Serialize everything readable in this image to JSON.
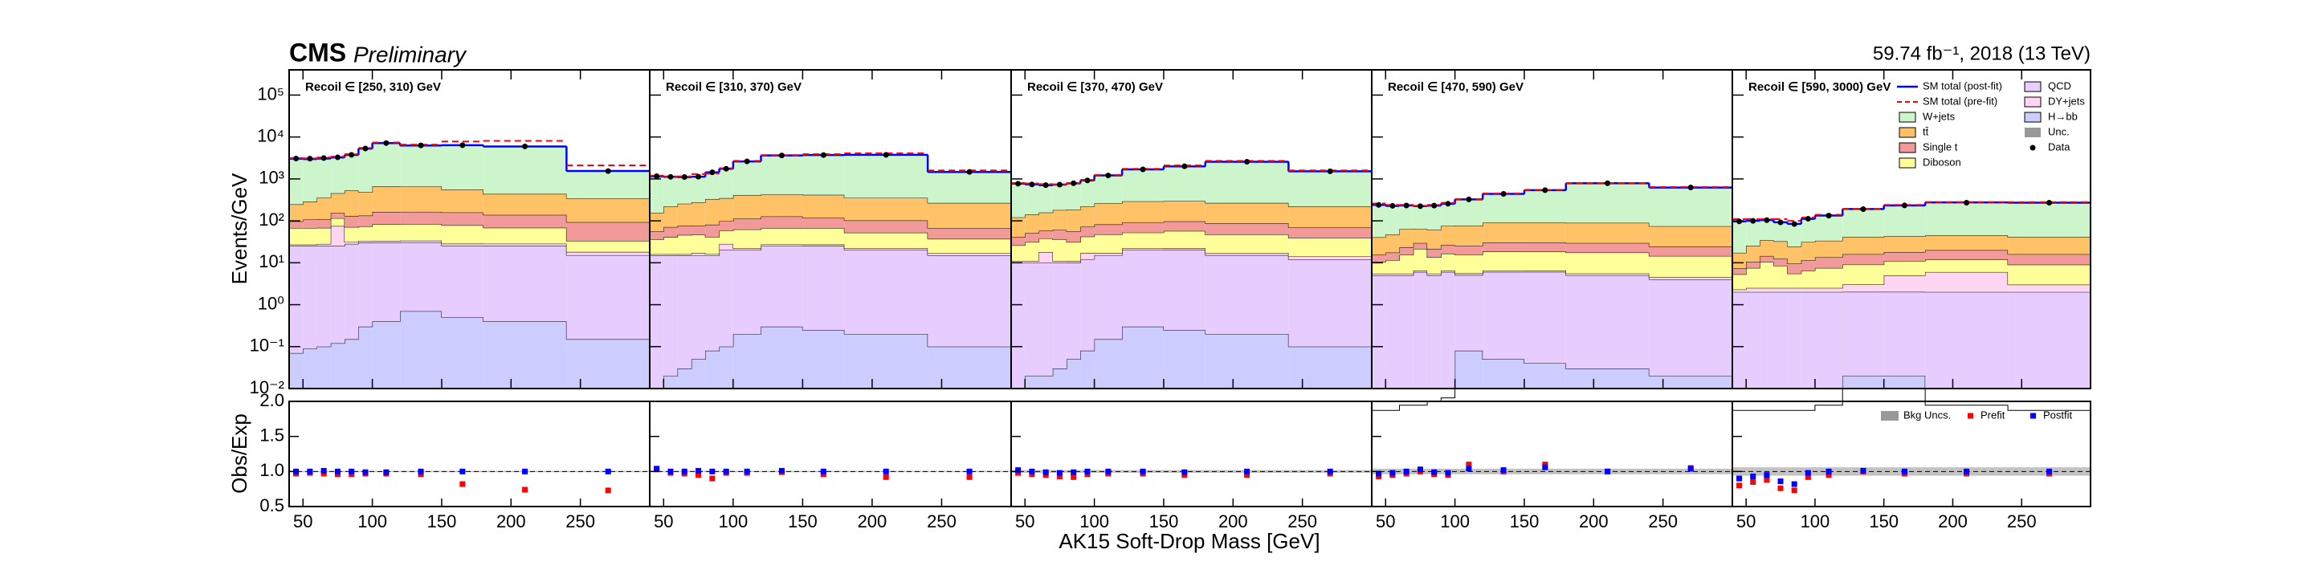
{
  "chart_data": {
    "type": "stacked-step-ratio",
    "title": "CMS",
    "subtitle": "Preliminary",
    "lumi": "59.74 fb⁻¹, 2018 (13 TeV)",
    "ylabel": "Events/GeV",
    "ratio_ylabel": "Obs/Exp",
    "xlabel": "AK15 Soft-Drop Mass [GeV]",
    "log_y": true,
    "bins": [
      40,
      50,
      60,
      70,
      80,
      90,
      100,
      120,
      150,
      180,
      240,
      300
    ],
    "xlim": [
      40,
      300
    ],
    "xticks": [
      50,
      100,
      150,
      200,
      250
    ],
    "ylim": [
      0.01,
      400000
    ],
    "yticks": [
      {
        "value": 0.01,
        "label": "10⁻²"
      },
      {
        "value": 0.1,
        "label": "10⁻¹"
      },
      {
        "value": 1,
        "label": "10⁰"
      },
      {
        "value": 10,
        "label": "10¹"
      },
      {
        "value": 100,
        "label": "10²"
      },
      {
        "value": 1000,
        "label": "10³"
      },
      {
        "value": 10000,
        "label": "10⁴"
      },
      {
        "value": 100000,
        "label": "10⁵"
      }
    ],
    "ratio_ylim": [
      0.5,
      2
    ],
    "ratio_yticks": [
      0.5,
      {
        "value": 1,
        "label": "1.0"
      },
      1.5,
      {
        "value": 2,
        "label": "2.0"
      }
    ],
    "processes": [
      {
        "name": "H→bb",
        "color": "#ccccff"
      },
      {
        "name": "QCD",
        "color": "#e6ccff"
      },
      {
        "name": "DY+jets",
        "color": "#ffd6f2"
      },
      {
        "name": "Diboson",
        "color": "#ffff99"
      },
      {
        "name": "Single t",
        "color": "#f29999"
      },
      {
        "name": "tt̄",
        "color": "#ffc266"
      },
      {
        "name": "W+jets",
        "color": "#ccf5cc"
      }
    ],
    "legend": {
      "postfit": "SM total (post-fit)",
      "prefit": "SM total (pre-fit)",
      "unc": "Unc.",
      "data": "Data",
      "ratio_unc": "Bkg Uncs.",
      "ratio_prefit": "Prefit",
      "ratio_postfit": "Postfit"
    },
    "colors": {
      "postfit": "#0000ff",
      "prefit": "#ff0000",
      "data": "#000000"
    },
    "panels": [
      {
        "label": "Recoil ∈ [250, 310) GeV",
        "stack": [
          [
            0.07,
            0.09,
            0.1,
            0.12,
            0.15,
            0.3,
            0.4,
            0.7,
            0.5,
            0.4,
            0.15
          ],
          [
            25,
            25,
            25,
            25,
            28,
            30,
            30,
            30,
            25,
            25,
            15
          ],
          [
            2,
            2,
            3,
            50,
            3,
            3,
            3,
            3,
            3,
            3,
            3
          ],
          [
            40,
            40,
            40,
            40,
            40,
            40,
            50,
            50,
            50,
            40,
            15
          ],
          [
            30,
            40,
            40,
            40,
            60,
            60,
            80,
            80,
            80,
            70,
            60
          ],
          [
            150,
            180,
            250,
            300,
            400,
            350,
            500,
            500,
            400,
            300,
            250
          ],
          [
            2800,
            2700,
            2700,
            2800,
            3200,
            4800,
            6500,
            5600,
            5800,
            5500,
            1200
          ]
        ],
        "prefit_total": [
          3150,
          3100,
          3250,
          3400,
          3900,
          5500,
          7400,
          6600,
          7800,
          8100,
          2100
        ],
        "data": [
          3060,
          3050,
          3150,
          3280,
          3760,
          5310,
          7170,
          6310,
          6370,
          5960,
          1540
        ],
        "ratio_prefit": [
          0.97,
          0.98,
          0.97,
          0.96,
          0.96,
          0.97,
          0.97,
          0.96,
          0.82,
          0.74,
          0.73
        ],
        "ratio_postfit": [
          1.0,
          1.0,
          1.01,
          1.0,
          1.0,
          0.99,
          0.99,
          1.0,
          1.0,
          1.0,
          1.0
        ],
        "unc": 0.01
      },
      {
        "label": "Recoil ∈ [310, 370) GeV",
        "stack": [
          [
            0.01,
            0.02,
            0.03,
            0.05,
            0.08,
            0.1,
            0.2,
            0.3,
            0.25,
            0.2,
            0.1
          ],
          [
            15,
            15,
            15,
            15,
            15,
            20,
            20,
            25,
            25,
            20,
            15
          ],
          [
            1,
            1,
            1,
            2,
            1,
            8,
            2,
            2,
            2,
            2,
            2
          ],
          [
            20,
            25,
            30,
            30,
            25,
            30,
            40,
            40,
            40,
            30,
            20
          ],
          [
            20,
            30,
            30,
            30,
            40,
            40,
            50,
            60,
            50,
            50,
            30
          ],
          [
            100,
            150,
            180,
            200,
            250,
            250,
            300,
            300,
            300,
            250,
            200
          ],
          [
            1000,
            900,
            850,
            850,
            1100,
            1400,
            2200,
            3200,
            3300,
            3400,
            1200
          ]
        ],
        "prefit_total": [
          1200,
          1150,
          1150,
          1300,
          1350,
          1800,
          2700,
          3700,
          3900,
          4100,
          1600
        ],
        "data": [
          1160,
          1120,
          1110,
          1130,
          1440,
          1750,
          2620,
          3630,
          3720,
          3750,
          1470
        ],
        "ratio_prefit": [
          1.03,
          0.98,
          0.97,
          0.95,
          0.9,
          0.98,
          0.98,
          0.99,
          0.96,
          0.92,
          0.92
        ],
        "ratio_postfit": [
          1.04,
          1.0,
          1.0,
          1.01,
          1.0,
          1.0,
          1.0,
          1.01,
          1.0,
          1.0,
          1.0
        ],
        "unc": 0.01
      },
      {
        "label": "Recoil ∈ [370, 470) GeV",
        "stack": [
          [
            0.01,
            0.02,
            0.02,
            0.03,
            0.05,
            0.08,
            0.15,
            0.3,
            0.25,
            0.2,
            0.1
          ],
          [
            10,
            10,
            10,
            10,
            10,
            12,
            15,
            20,
            20,
            15,
            12
          ],
          [
            1,
            1,
            8,
            1,
            1,
            5,
            2,
            2,
            2,
            2,
            2
          ],
          [
            15,
            20,
            20,
            25,
            20,
            25,
            30,
            30,
            35,
            30,
            25
          ],
          [
            15,
            20,
            20,
            25,
            25,
            30,
            35,
            40,
            40,
            40,
            30
          ],
          [
            80,
            90,
            100,
            120,
            130,
            150,
            180,
            200,
            200,
            180,
            150
          ],
          [
            650,
            600,
            550,
            550,
            600,
            700,
            950,
            1400,
            1700,
            2300,
            1300
          ]
        ],
        "prefit_total": [
          800,
          780,
          750,
          740,
          800,
          950,
          1250,
          1750,
          2100,
          2700,
          1600
        ],
        "data": [
          770,
          740,
          710,
          730,
          790,
          920,
          1210,
          1690,
          2000,
          2570,
          1520
        ],
        "ratio_prefit": [
          0.98,
          0.96,
          0.95,
          0.93,
          0.92,
          0.96,
          0.97,
          0.97,
          0.95,
          0.95,
          0.97
        ],
        "ratio_postfit": [
          1.02,
          1.0,
          0.99,
          0.98,
          0.99,
          1.0,
          1.0,
          1.0,
          0.99,
          1.0,
          1.0
        ],
        "unc": 0.02
      },
      {
        "label": "Recoil ∈ [470, 590) GeV",
        "stack": [
          [
            0.003,
            0.003,
            0.004,
            0.004,
            0.005,
            0.006,
            0.08,
            0.05,
            0.04,
            0.03,
            0.02
          ],
          [
            5,
            5,
            5,
            6,
            5,
            6,
            5,
            6,
            6,
            5,
            4
          ],
          [
            0.5,
            0.5,
            0.5,
            0.5,
            0.5,
            0.5,
            0.5,
            0.5,
            0.5,
            0.5,
            0.5
          ],
          [
            5,
            6,
            10,
            15,
            8,
            10,
            10,
            12,
            12,
            12,
            10
          ],
          [
            5,
            6,
            8,
            8,
            8,
            10,
            10,
            12,
            12,
            12,
            10
          ],
          [
            25,
            30,
            40,
            35,
            40,
            50,
            50,
            60,
            60,
            60,
            50
          ],
          [
            200,
            180,
            170,
            160,
            170,
            180,
            250,
            350,
            450,
            700,
            550
          ]
        ],
        "prefit_total": [
          260,
          240,
          240,
          230,
          240,
          270,
          330,
          450,
          550,
          800,
          640
        ],
        "data": [
          240,
          228,
          232,
          224,
          231,
          256,
          325,
          440,
          540,
          790,
          625
        ],
        "ratio_prefit": [
          0.93,
          0.95,
          0.97,
          1.0,
          0.96,
          0.95,
          1.1,
          1.0,
          1.1,
          1.0,
          1.05
        ],
        "ratio_postfit": [
          0.97,
          0.98,
          1.0,
          1.03,
          0.99,
          0.98,
          1.04,
          1.02,
          1.06,
          1.0,
          1.04
        ],
        "unc": 0.04
      },
      {
        "label": "Recoil ∈ [590, 3000) GeV",
        "stack": [
          [
            0.003,
            0.003,
            0.003,
            0.003,
            0.003,
            0.003,
            0.004,
            0.02,
            0.02,
            0.004,
            0.003
          ],
          [
            2,
            2,
            2,
            2,
            2,
            2,
            2,
            2,
            2,
            2,
            2
          ],
          [
            0.3,
            0.5,
            0.5,
            0.5,
            0.5,
            0.5,
            0.5,
            1,
            3,
            4,
            1
          ],
          [
            3,
            5,
            8,
            6,
            3,
            4,
            5,
            6,
            6,
            6,
            6
          ],
          [
            2,
            3,
            4,
            4,
            4,
            5,
            6,
            7,
            7,
            8,
            7
          ],
          [
            10,
            15,
            20,
            20,
            15,
            20,
            20,
            25,
            25,
            25,
            25
          ],
          [
            80,
            75,
            70,
            60,
            60,
            80,
            100,
            150,
            190,
            230,
            230
          ]
        ],
        "prefit_total": [
          110,
          110,
          110,
          110,
          100,
          120,
          140,
          190,
          240,
          280,
          280
        ],
        "data": [
          97,
          100,
          104,
          92,
          84,
          112,
          133,
          190,
          233,
          271,
          271
        ],
        "ratio_prefit": [
          0.8,
          0.85,
          0.88,
          0.76,
          0.73,
          0.92,
          0.95,
          1.0,
          0.97,
          0.97,
          0.97
        ],
        "ratio_postfit": [
          0.9,
          0.93,
          0.95,
          0.86,
          0.82,
          0.98,
          1.0,
          1.01,
          1.0,
          1.0,
          1.0
        ],
        "unc": 0.06
      }
    ]
  }
}
